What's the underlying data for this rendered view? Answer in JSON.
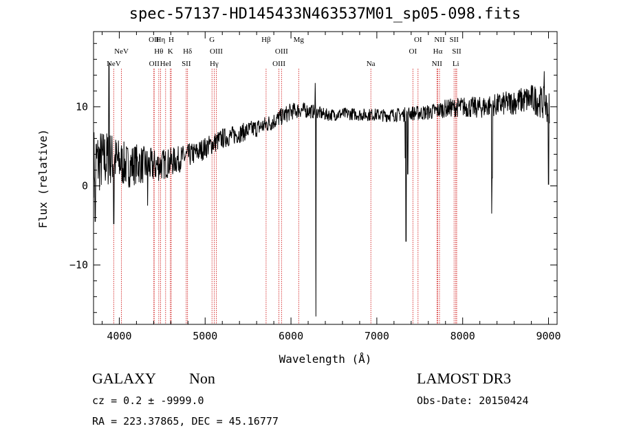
{
  "title": "spec-57137-HD145433N463537M01_sp05-098.fits",
  "info": {
    "object_class": "GALAXY",
    "subclass": "Non",
    "survey": "LAMOST DR3",
    "cz": "cz = 0.2 ± -9999.0",
    "obs_date": "Obs-Date: 20150424",
    "coords": "RA = 223.37865, DEC =  45.16777"
  },
  "chart_data": {
    "type": "line",
    "title": "spec-57137-HD145433N463537M01_sp05-098.fits",
    "xlabel": "Wavelength (Å)",
    "ylabel": "Flux (relative)",
    "xlim": [
      3700,
      9100
    ],
    "ylim": [
      -17.5,
      19.5
    ],
    "x_ticks": [
      4000,
      5000,
      6000,
      7000,
      8000,
      9000
    ],
    "y_ticks": [
      -10,
      0,
      10
    ],
    "continuum": [
      [
        3700,
        3.0
      ],
      [
        3800,
        3.2
      ],
      [
        3900,
        3.5
      ],
      [
        4000,
        3.0
      ],
      [
        4100,
        2.5
      ],
      [
        4200,
        2.8
      ],
      [
        4300,
        2.6
      ],
      [
        4400,
        2.5
      ],
      [
        4500,
        2.7
      ],
      [
        4600,
        3.0
      ],
      [
        4700,
        3.4
      ],
      [
        4800,
        3.8
      ],
      [
        4900,
        4.2
      ],
      [
        5000,
        4.8
      ],
      [
        5100,
        5.4
      ],
      [
        5200,
        6.0
      ],
      [
        5300,
        6.3
      ],
      [
        5400,
        6.6
      ],
      [
        5500,
        7.0
      ],
      [
        5600,
        7.3
      ],
      [
        5700,
        7.7
      ],
      [
        5800,
        8.2
      ],
      [
        5900,
        8.8
      ],
      [
        6000,
        9.4
      ],
      [
        6100,
        9.6
      ],
      [
        6200,
        9.5
      ],
      [
        6300,
        9.3
      ],
      [
        6400,
        9.0
      ],
      [
        6500,
        9.0
      ],
      [
        6600,
        9.1
      ],
      [
        6700,
        9.1
      ],
      [
        6800,
        9.0
      ],
      [
        6900,
        9.0
      ],
      [
        7000,
        9.0
      ],
      [
        7100,
        8.9
      ],
      [
        7200,
        9.0
      ],
      [
        7300,
        9.0
      ],
      [
        7400,
        9.2
      ],
      [
        7500,
        9.2
      ],
      [
        7600,
        9.3
      ],
      [
        7700,
        9.5
      ],
      [
        7800,
        9.8
      ],
      [
        7900,
        9.9
      ],
      [
        8000,
        10.0
      ],
      [
        8100,
        9.9
      ],
      [
        8200,
        9.9
      ],
      [
        8300,
        10.1
      ],
      [
        8400,
        10.2
      ],
      [
        8500,
        10.4
      ],
      [
        8600,
        10.6
      ],
      [
        8700,
        10.8
      ],
      [
        8800,
        11.0
      ],
      [
        8900,
        10.7
      ],
      [
        9000,
        10.0
      ]
    ],
    "noise_amplitude": [
      [
        3700,
        4.5
      ],
      [
        4000,
        3.0
      ],
      [
        4400,
        2.2
      ],
      [
        4800,
        1.5
      ],
      [
        5400,
        1.2
      ],
      [
        6000,
        1.1
      ],
      [
        6400,
        0.8
      ],
      [
        7000,
        0.8
      ],
      [
        7600,
        1.0
      ],
      [
        8000,
        1.3
      ],
      [
        8600,
        1.6
      ],
      [
        9000,
        2.2
      ]
    ],
    "features": [
      {
        "wavelength": 3720,
        "flux": -4.5
      },
      {
        "wavelength": 3880,
        "flux": 15.5
      },
      {
        "wavelength": 3935,
        "flux": -4.8
      },
      {
        "wavelength": 4330,
        "flux": -2.5
      },
      {
        "wavelength": 6282,
        "flux": 13.0
      },
      {
        "wavelength": 6290,
        "flux": -16.5
      },
      {
        "wavelength": 7330,
        "flux": 3.5
      },
      {
        "wavelength": 7340,
        "flux": -7.0
      },
      {
        "wavelength": 7360,
        "flux": 1.5
      },
      {
        "wavelength": 8340,
        "flux": -3.5
      },
      {
        "wavelength": 8345,
        "flux": 1.0
      },
      {
        "wavelength": 8950,
        "flux": 14.5
      },
      {
        "wavelength": 9000,
        "flux": 0.2
      }
    ],
    "reference_lines": [
      {
        "label": "NeV",
        "wavelength": 3935,
        "row": 3
      },
      {
        "label": "NeV",
        "wavelength": 4025,
        "row": 2
      },
      {
        "label": "OII",
        "wavelength": 4403,
        "row": 1
      },
      {
        "label": "OII",
        "wavelength": 4407,
        "row": 3
      },
      {
        "label": "Hη",
        "wavelength": 4480,
        "row": 1
      },
      {
        "label": "Hθ",
        "wavelength": 4460,
        "row": 2
      },
      {
        "label": "HeI",
        "wavelength": 4540,
        "row": 3
      },
      {
        "label": "H",
        "wavelength": 4605,
        "row": 1
      },
      {
        "label": "K",
        "wavelength": 4595,
        "row": 2
      },
      {
        "label": "Hδ",
        "wavelength": 4795,
        "row": 2
      },
      {
        "label": "SII",
        "wavelength": 4780,
        "row": 3
      },
      {
        "label": "G",
        "wavelength": 5080,
        "row": 1
      },
      {
        "label": "OIII",
        "wavelength": 5130,
        "row": 2
      },
      {
        "label": "Hγ",
        "wavelength": 5105,
        "row": 3
      },
      {
        "label": "Hβ",
        "wavelength": 5710,
        "row": 1
      },
      {
        "label": "OIII",
        "wavelength": 5890,
        "row": 2
      },
      {
        "label": "OIII",
        "wavelength": 5860,
        "row": 3
      },
      {
        "label": "Mg",
        "wavelength": 6090,
        "row": 1
      },
      {
        "label": "Na",
        "wavelength": 6930,
        "row": 3
      },
      {
        "label": "OI",
        "wavelength": 7480,
        "row": 1
      },
      {
        "label": "OI",
        "wavelength": 7420,
        "row": 2
      },
      {
        "label": "NII",
        "wavelength": 7730,
        "row": 1
      },
      {
        "label": "Hα",
        "wavelength": 7710,
        "row": 2
      },
      {
        "label": "NII",
        "wavelength": 7700,
        "row": 3
      },
      {
        "label": "SII",
        "wavelength": 7900,
        "row": 1
      },
      {
        "label": "SII",
        "wavelength": 7930,
        "row": 2
      },
      {
        "label": "Li",
        "wavelength": 7920,
        "row": 3
      }
    ]
  }
}
